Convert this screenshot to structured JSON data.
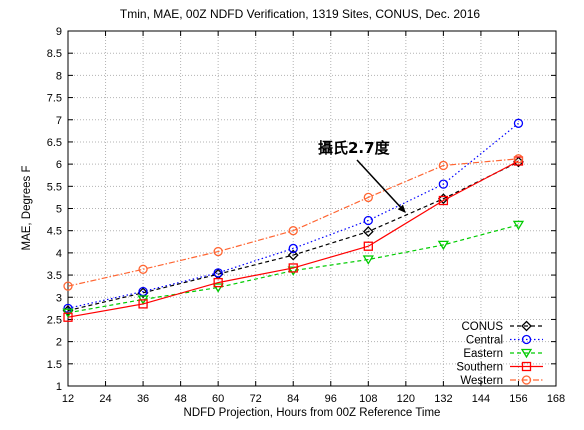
{
  "chart_data": {
    "type": "line",
    "title": "Tmin, MAE, 00Z NDFD Verification, 1319 Sites, CONUS, Dec. 2016",
    "xlabel": "NDFD Projection, Hours from 00Z Reference Time",
    "ylabel": "MAE, Degrees F",
    "xlim": [
      12,
      168
    ],
    "ylim": [
      1,
      9
    ],
    "xticks": [
      "12",
      "24",
      "36",
      "48",
      "60",
      "72",
      "84",
      "96",
      "108",
      "120",
      "132",
      "144",
      "156",
      "168"
    ],
    "yticks": [
      "1",
      "1.5",
      "2",
      "2.5",
      "3",
      "3.5",
      "4",
      "4.5",
      "5",
      "5.5",
      "6",
      "6.5",
      "7",
      "7.5",
      "8",
      "8.5",
      "9"
    ],
    "grid": true,
    "legend_position": "bottom-right",
    "x": [
      12,
      36,
      60,
      84,
      108,
      132,
      156
    ],
    "series": [
      {
        "name": "CONUS",
        "color": "#000000",
        "marker": "diamond",
        "line": "dashed",
        "values": [
          2.7,
          3.1,
          3.52,
          3.95,
          4.48,
          5.22,
          6.05
        ]
      },
      {
        "name": "Central",
        "color": "#0000ff",
        "marker": "circle",
        "line": "dotted",
        "values": [
          2.75,
          3.13,
          3.55,
          4.1,
          4.73,
          5.55,
          6.92
        ]
      },
      {
        "name": "Eastern",
        "color": "#00cc00",
        "marker": "triangle",
        "line": "dashed",
        "values": [
          2.65,
          2.95,
          3.22,
          3.6,
          3.85,
          4.18,
          4.63
        ]
      },
      {
        "name": "Southern",
        "color": "#ff0000",
        "marker": "square",
        "line": "solid",
        "values": [
          2.55,
          2.85,
          3.33,
          3.66,
          4.15,
          5.18,
          6.07
        ]
      },
      {
        "name": "Western",
        "color": "#ff6633",
        "marker": "circle",
        "line": "dashdot",
        "values": [
          3.25,
          3.63,
          4.03,
          4.5,
          5.25,
          5.97,
          6.12
        ]
      }
    ],
    "annotation": {
      "text": "攝氏2.7度",
      "point": [
        120,
        4.9
      ]
    }
  }
}
